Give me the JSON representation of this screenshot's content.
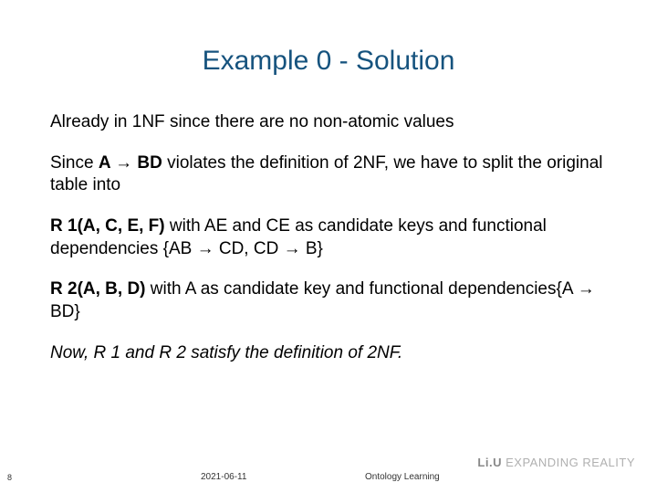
{
  "title": "Example 0 - Solution",
  "p1": "Already in 1NF since there are no non-atomic values",
  "p2a": "Since ",
  "p2b": "A → BD",
  "p2c": " violates the definition of 2NF, we have to split the original table into",
  "p3a": "R 1(A, C, E, F)",
  "p3b": " with AE and CE as candidate keys and functional dependencies {AB → CD, CD → B}",
  "p4a": "R 2(A, B, D)",
  "p4b": " with A as candidate key and functional dependencies{A → BD}",
  "p5": "Now, R 1 and R 2 satisfy the definition of 2NF.",
  "footer": {
    "page": "8",
    "date": "2021-06-11",
    "topic": "Ontology Learning",
    "logo_brand": "Li.U",
    "logo_tag": " EXPANDING REALITY"
  }
}
